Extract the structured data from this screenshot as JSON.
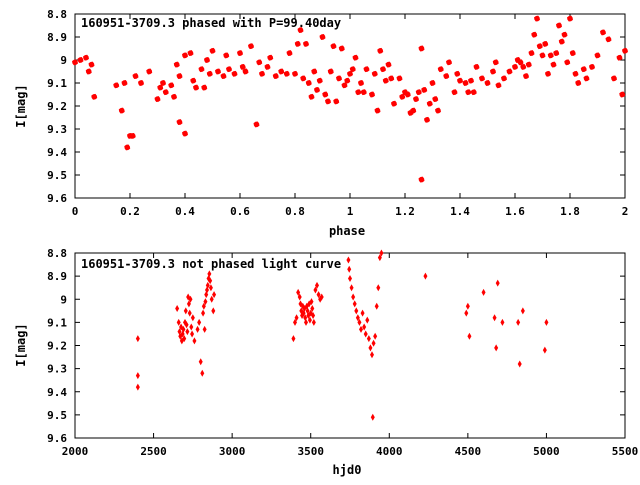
{
  "chart_data": [
    {
      "type": "scatter",
      "title": "160951-3709.3 phased with P=99.40day",
      "xlabel": "phase",
      "ylabel": "I[mag]",
      "xlim": [
        0,
        2
      ],
      "ylim": [
        9.6,
        8.8
      ],
      "y_inverted": true,
      "xticks": [
        "0",
        "0.2",
        "0.4",
        "0.6",
        "0.8",
        "1",
        "1.2",
        "1.4",
        "1.6",
        "1.8",
        "2"
      ],
      "yticks": [
        "8.8",
        "8.9",
        "9",
        "9.1",
        "9.2",
        "9.3",
        "9.4",
        "9.5",
        "9.6"
      ],
      "grid": false,
      "color": "#ff0000",
      "marker": "star",
      "points": [
        [
          0.0,
          9.01
        ],
        [
          0.02,
          9.0
        ],
        [
          0.04,
          8.99
        ],
        [
          0.06,
          9.02
        ],
        [
          0.05,
          9.05
        ],
        [
          0.07,
          9.16
        ],
        [
          0.15,
          9.11
        ],
        [
          0.17,
          9.22
        ],
        [
          0.18,
          9.1
        ],
        [
          0.19,
          9.38
        ],
        [
          0.2,
          9.33
        ],
        [
          0.21,
          9.33
        ],
        [
          0.22,
          9.07
        ],
        [
          0.24,
          9.1
        ],
        [
          0.27,
          9.05
        ],
        [
          0.3,
          9.17
        ],
        [
          0.31,
          9.12
        ],
        [
          0.32,
          9.1
        ],
        [
          0.33,
          9.14
        ],
        [
          0.35,
          9.11
        ],
        [
          0.36,
          9.16
        ],
        [
          0.37,
          9.02
        ],
        [
          0.38,
          9.07
        ],
        [
          0.38,
          9.27
        ],
        [
          0.4,
          9.32
        ],
        [
          0.4,
          8.98
        ],
        [
          0.42,
          8.97
        ],
        [
          0.43,
          9.09
        ],
        [
          0.44,
          9.12
        ],
        [
          0.46,
          9.04
        ],
        [
          0.47,
          9.12
        ],
        [
          0.48,
          9.0
        ],
        [
          0.49,
          9.06
        ],
        [
          0.5,
          8.96
        ],
        [
          0.52,
          9.05
        ],
        [
          0.54,
          9.07
        ],
        [
          0.55,
          8.98
        ],
        [
          0.56,
          9.04
        ],
        [
          0.58,
          9.06
        ],
        [
          0.6,
          8.97
        ],
        [
          0.61,
          9.03
        ],
        [
          0.62,
          9.05
        ],
        [
          0.64,
          8.94
        ],
        [
          0.66,
          9.28
        ],
        [
          0.67,
          9.01
        ],
        [
          0.68,
          9.06
        ],
        [
          0.7,
          9.03
        ],
        [
          0.71,
          8.99
        ],
        [
          0.73,
          9.07
        ],
        [
          0.75,
          9.05
        ],
        [
          0.77,
          9.06
        ],
        [
          0.78,
          8.97
        ],
        [
          0.8,
          9.06
        ],
        [
          0.81,
          8.93
        ],
        [
          0.82,
          8.87
        ],
        [
          0.83,
          9.08
        ],
        [
          0.84,
          8.93
        ],
        [
          0.85,
          9.1
        ],
        [
          0.86,
          9.16
        ],
        [
          0.87,
          9.05
        ],
        [
          0.88,
          9.13
        ],
        [
          0.89,
          9.09
        ],
        [
          0.9,
          8.9
        ],
        [
          0.91,
          9.15
        ],
        [
          0.92,
          9.18
        ],
        [
          0.93,
          9.05
        ],
        [
          0.94,
          8.94
        ],
        [
          0.95,
          9.18
        ],
        [
          0.96,
          9.08
        ],
        [
          0.97,
          8.95
        ],
        [
          0.98,
          9.11
        ],
        [
          0.99,
          9.09
        ],
        [
          1.0,
          9.06
        ],
        [
          1.01,
          9.04
        ],
        [
          1.02,
          8.99
        ],
        [
          1.03,
          9.14
        ],
        [
          1.04,
          9.1
        ],
        [
          1.05,
          9.14
        ],
        [
          1.06,
          9.04
        ],
        [
          1.08,
          9.15
        ],
        [
          1.09,
          9.06
        ],
        [
          1.1,
          9.22
        ],
        [
          1.11,
          8.96
        ],
        [
          1.12,
          9.04
        ],
        [
          1.13,
          9.09
        ],
        [
          1.14,
          9.02
        ],
        [
          1.15,
          9.08
        ],
        [
          1.16,
          9.19
        ],
        [
          1.18,
          9.08
        ],
        [
          1.19,
          9.16
        ],
        [
          1.2,
          9.14
        ],
        [
          1.21,
          9.15
        ],
        [
          1.22,
          9.23
        ],
        [
          1.23,
          9.22
        ],
        [
          1.24,
          9.17
        ],
        [
          1.25,
          9.14
        ],
        [
          1.26,
          8.95
        ],
        [
          1.26,
          9.52
        ],
        [
          1.27,
          9.13
        ],
        [
          1.28,
          9.26
        ],
        [
          1.29,
          9.19
        ],
        [
          1.3,
          9.1
        ],
        [
          1.31,
          9.17
        ],
        [
          1.32,
          9.22
        ],
        [
          1.33,
          9.04
        ],
        [
          1.35,
          9.07
        ],
        [
          1.36,
          9.01
        ],
        [
          1.38,
          9.14
        ],
        [
          1.39,
          9.06
        ],
        [
          1.4,
          9.09
        ],
        [
          1.42,
          9.1
        ],
        [
          1.43,
          9.14
        ],
        [
          1.44,
          9.09
        ],
        [
          1.45,
          9.14
        ],
        [
          1.46,
          9.03
        ],
        [
          1.48,
          9.08
        ],
        [
          1.5,
          9.1
        ],
        [
          1.52,
          9.05
        ],
        [
          1.53,
          9.01
        ],
        [
          1.54,
          9.11
        ],
        [
          1.56,
          9.08
        ],
        [
          1.58,
          9.05
        ],
        [
          1.6,
          9.03
        ],
        [
          1.61,
          9.0
        ],
        [
          1.62,
          9.01
        ],
        [
          1.63,
          9.03
        ],
        [
          1.64,
          9.07
        ],
        [
          1.65,
          9.02
        ],
        [
          1.66,
          8.97
        ],
        [
          1.67,
          8.89
        ],
        [
          1.68,
          8.82
        ],
        [
          1.69,
          8.94
        ],
        [
          1.7,
          8.98
        ],
        [
          1.71,
          8.93
        ],
        [
          1.72,
          9.06
        ],
        [
          1.73,
          8.98
        ],
        [
          1.74,
          9.02
        ],
        [
          1.75,
          8.97
        ],
        [
          1.76,
          8.85
        ],
        [
          1.77,
          8.92
        ],
        [
          1.78,
          8.89
        ],
        [
          1.79,
          9.01
        ],
        [
          1.8,
          8.82
        ],
        [
          1.81,
          8.97
        ],
        [
          1.82,
          9.06
        ],
        [
          1.83,
          9.1
        ],
        [
          1.85,
          9.04
        ],
        [
          1.86,
          9.08
        ],
        [
          1.88,
          9.03
        ],
        [
          1.9,
          8.98
        ],
        [
          1.92,
          8.88
        ],
        [
          1.94,
          8.91
        ],
        [
          1.96,
          9.08
        ],
        [
          1.98,
          8.99
        ],
        [
          2.0,
          8.96
        ],
        [
          1.99,
          9.15
        ]
      ]
    },
    {
      "type": "scatter",
      "title": "160951-3709.3 not phased light curve",
      "xlabel": "hjd0",
      "ylabel": "I[mag]",
      "xlim": [
        2000,
        5500
      ],
      "ylim": [
        9.6,
        8.8
      ],
      "y_inverted": true,
      "xticks": [
        "2000",
        "2500",
        "3000",
        "3500",
        "4000",
        "4500",
        "5000",
        "5500"
      ],
      "yticks": [
        "8.8",
        "8.9",
        "9",
        "9.1",
        "9.2",
        "9.3",
        "9.4",
        "9.5",
        "9.6"
      ],
      "grid": false,
      "color": "#ff0000",
      "marker": "diamond",
      "points": [
        [
          2400,
          9.17
        ],
        [
          2400,
          9.33
        ],
        [
          2400,
          9.38
        ],
        [
          2650,
          9.04
        ],
        [
          2660,
          9.1
        ],
        [
          2665,
          9.14
        ],
        [
          2670,
          9.16
        ],
        [
          2675,
          9.12
        ],
        [
          2680,
          9.18
        ],
        [
          2685,
          9.15
        ],
        [
          2690,
          9.13
        ],
        [
          2695,
          9.17
        ],
        [
          2700,
          9.1
        ],
        [
          2705,
          9.05
        ],
        [
          2710,
          9.11
        ],
        [
          2715,
          9.14
        ],
        [
          2720,
          8.99
        ],
        [
          2725,
          9.02
        ],
        [
          2730,
          9.06
        ],
        [
          2735,
          9.0
        ],
        [
          2740,
          9.12
        ],
        [
          2745,
          9.15
        ],
        [
          2750,
          9.08
        ],
        [
          2760,
          9.18
        ],
        [
          2780,
          9.13
        ],
        [
          2790,
          9.1
        ],
        [
          2800,
          9.27
        ],
        [
          2810,
          9.32
        ],
        [
          2815,
          9.06
        ],
        [
          2820,
          9.03
        ],
        [
          2825,
          9.13
        ],
        [
          2830,
          9.01
        ],
        [
          2835,
          8.98
        ],
        [
          2840,
          8.96
        ],
        [
          2845,
          8.94
        ],
        [
          2850,
          8.91
        ],
        [
          2855,
          8.89
        ],
        [
          2860,
          8.92
        ],
        [
          2865,
          8.95
        ],
        [
          2870,
          9.0
        ],
        [
          2880,
          9.05
        ],
        [
          2885,
          8.98
        ],
        [
          3390,
          9.17
        ],
        [
          3400,
          9.1
        ],
        [
          3410,
          9.08
        ],
        [
          3420,
          8.97
        ],
        [
          3430,
          8.99
        ],
        [
          3435,
          9.02
        ],
        [
          3440,
          9.05
        ],
        [
          3445,
          9.07
        ],
        [
          3450,
          9.03
        ],
        [
          3455,
          9.06
        ],
        [
          3460,
          9.04
        ],
        [
          3465,
          9.08
        ],
        [
          3470,
          9.1
        ],
        [
          3475,
          9.03
        ],
        [
          3480,
          9.05
        ],
        [
          3485,
          9.07
        ],
        [
          3490,
          9.02
        ],
        [
          3495,
          9.09
        ],
        [
          3500,
          9.06
        ],
        [
          3505,
          9.01
        ],
        [
          3510,
          9.04
        ],
        [
          3515,
          9.07
        ],
        [
          3520,
          9.1
        ],
        [
          3530,
          8.96
        ],
        [
          3540,
          8.94
        ],
        [
          3550,
          8.98
        ],
        [
          3560,
          9.0
        ],
        [
          3570,
          8.99
        ],
        [
          3740,
          8.83
        ],
        [
          3745,
          8.87
        ],
        [
          3750,
          8.91
        ],
        [
          3760,
          8.95
        ],
        [
          3770,
          8.99
        ],
        [
          3780,
          9.02
        ],
        [
          3790,
          9.05
        ],
        [
          3800,
          9.08
        ],
        [
          3810,
          9.1
        ],
        [
          3820,
          9.13
        ],
        [
          3830,
          9.06
        ],
        [
          3840,
          9.12
        ],
        [
          3850,
          9.15
        ],
        [
          3860,
          9.09
        ],
        [
          3870,
          9.17
        ],
        [
          3880,
          9.21
        ],
        [
          3890,
          9.24
        ],
        [
          3895,
          9.51
        ],
        [
          3900,
          9.19
        ],
        [
          3910,
          9.16
        ],
        [
          3920,
          9.03
        ],
        [
          3930,
          8.95
        ],
        [
          3940,
          8.82
        ],
        [
          3950,
          8.8
        ],
        [
          4230,
          8.9
        ],
        [
          4490,
          9.06
        ],
        [
          4500,
          9.03
        ],
        [
          4510,
          9.16
        ],
        [
          4600,
          8.97
        ],
        [
          4670,
          9.08
        ],
        [
          4680,
          9.21
        ],
        [
          4690,
          8.93
        ],
        [
          4720,
          9.1
        ],
        [
          4820,
          9.1
        ],
        [
          4830,
          9.28
        ],
        [
          4850,
          9.05
        ],
        [
          4990,
          9.22
        ],
        [
          5000,
          9.1
        ]
      ]
    }
  ]
}
